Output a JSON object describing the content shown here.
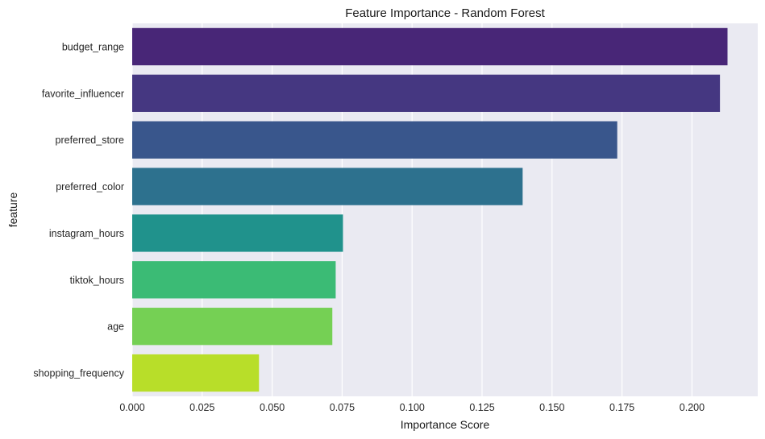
{
  "chart_data": {
    "type": "bar",
    "orientation": "horizontal",
    "title": "Feature Importance - Random Forest",
    "xlabel": "Importance Score",
    "ylabel": "feature",
    "categories": [
      "budget_range",
      "favorite_influencer",
      "preferred_store",
      "preferred_color",
      "instagram_hours",
      "tiktok_hours",
      "age",
      "shopping_frequency"
    ],
    "values": [
      0.2127,
      0.21,
      0.1733,
      0.1395,
      0.0753,
      0.0727,
      0.0715,
      0.0453
    ],
    "colors": [
      "#482677",
      "#453781",
      "#39568c",
      "#2d718e",
      "#20928c",
      "#3bbb75",
      "#75d054",
      "#b8de29"
    ],
    "xlim": [
      0,
      0.2235
    ],
    "xticks": [
      0.0,
      0.025,
      0.05,
      0.075,
      0.1,
      0.125,
      0.15,
      0.175,
      0.2
    ],
    "xtick_labels": [
      "0.000",
      "0.025",
      "0.050",
      "0.075",
      "0.100",
      "0.125",
      "0.150",
      "0.175",
      "0.200"
    ],
    "grid": true,
    "background": "#eaeaf2",
    "grid_color": "#ffffff"
  }
}
